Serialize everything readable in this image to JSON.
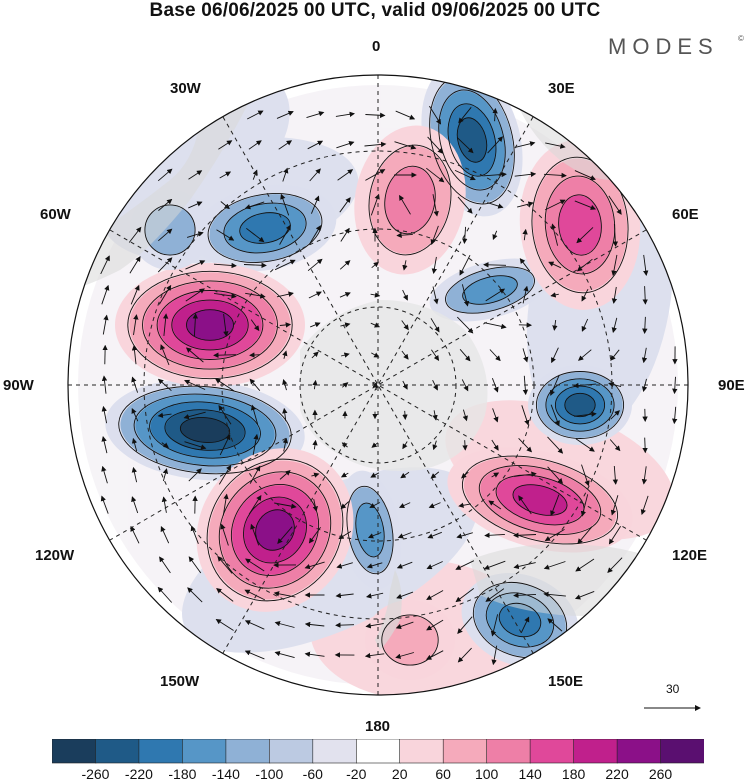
{
  "title": "Base 06/06/2025 00 UTC, valid 09/06/2025 00 UTC",
  "brand": "MODES",
  "brand_mark": "©",
  "longitude_labels": {
    "top": "0",
    "top_right": "30E",
    "right_upper": "60E",
    "right": "90E",
    "right_lower": "120E",
    "bottom_right": "150E",
    "bottom": "180",
    "bottom_left": "150W",
    "left_lower": "120W",
    "left": "90W",
    "left_upper": "60W",
    "top_left": "30W"
  },
  "reference_vector": "30",
  "colorbar": {
    "labels": [
      "-260",
      "-220",
      "-180",
      "-140",
      "-100",
      "-60",
      "-20",
      "20",
      "60",
      "100",
      "140",
      "180",
      "220",
      "260"
    ],
    "colors": [
      "#1a3d5c",
      "#1f5a87",
      "#2f78b0",
      "#5696c7",
      "#8fb1d6",
      "#bccae2",
      "#e2e2ee",
      "#ffffff",
      "#f9d5dc",
      "#f5aabb",
      "#ee7fa7",
      "#e0489a",
      "#c0208c",
      "#8b1088",
      "#5a0f70"
    ]
  },
  "map_colors": {
    "land": "#d9d9d9",
    "antarctica": "#e6e6e6",
    "strong_neg": "#1a3d5c",
    "mid_neg": "#2f78b0",
    "weak_neg": "#8fb1d6",
    "faint_neg": "#dcdfee",
    "faint_pos": "#f9d5dc",
    "weak_pos": "#f5aabb",
    "mid_pos": "#e0489a",
    "strong_pos": "#8b1088"
  }
}
